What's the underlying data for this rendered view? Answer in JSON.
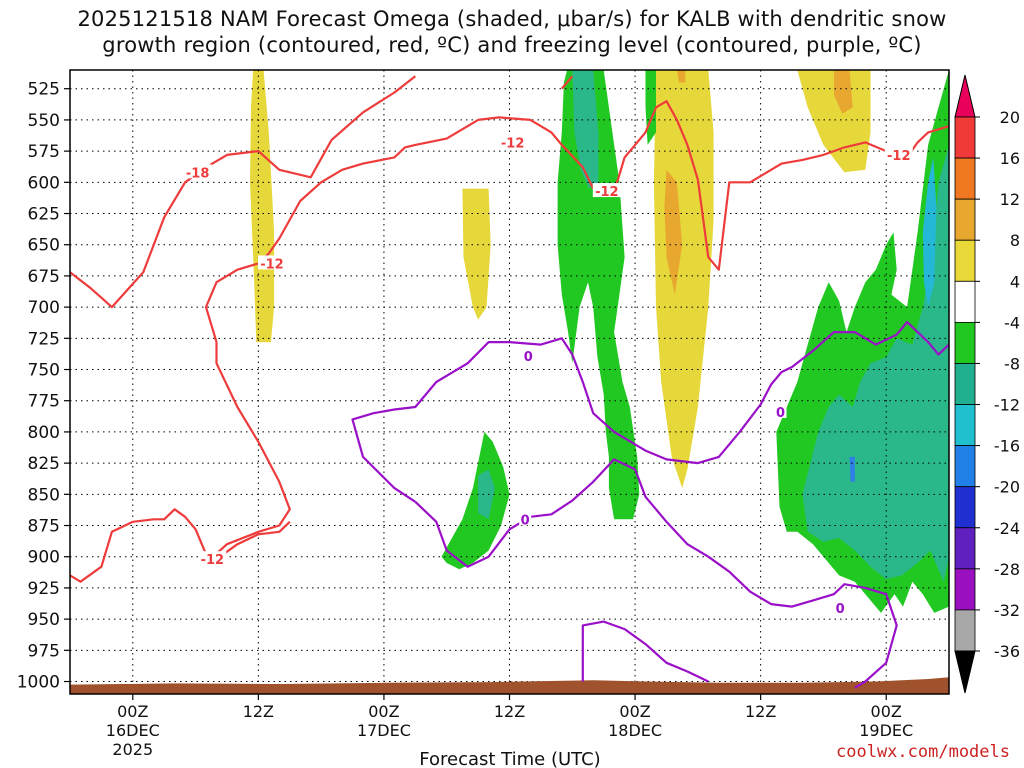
{
  "chart_data": {
    "type": "heatmap",
    "title_line1": "2025121518 NAM Forecast Omega (shaded, μbar/s) for KALB with dendritic snow",
    "title_line2": "growth region (contoured, red, ºC) and freezing level (contoured, purple, ºC)",
    "xlabel": "Forecast Time (UTC)",
    "ylabel": "",
    "credit": "coolwx.com/models",
    "x_ticks": [
      {
        "label": "00Z",
        "day": "16DEC",
        "year": "2025",
        "hour": 6
      },
      {
        "label": "12Z",
        "day": "",
        "year": "",
        "hour": 18
      },
      {
        "label": "00Z",
        "day": "17DEC",
        "year": "",
        "hour": 30
      },
      {
        "label": "12Z",
        "day": "",
        "year": "",
        "hour": 42
      },
      {
        "label": "00Z",
        "day": "18DEC",
        "year": "",
        "hour": 54
      },
      {
        "label": "12Z",
        "day": "",
        "year": "",
        "hour": 66
      },
      {
        "label": "00Z",
        "day": "19DEC",
        "year": "",
        "hour": 78
      }
    ],
    "xlim_hours": [
      0,
      84
    ],
    "y_ticks": [
      "525",
      "550",
      "575",
      "600",
      "625",
      "650",
      "675",
      "700",
      "725",
      "750",
      "775",
      "800",
      "825",
      "850",
      "875",
      "900",
      "925",
      "950",
      "975",
      "1000"
    ],
    "ylim_hpa": [
      510,
      1010
    ],
    "colorbar": {
      "labels": [
        "20",
        "16",
        "12",
        "8",
        "4",
        "-4",
        "-8",
        "-12",
        "-16",
        "-20",
        "-24",
        "-28",
        "-32",
        "-36"
      ],
      "colors": [
        "#e8005a",
        "#f03a3a",
        "#f07820",
        "#e8a830",
        "#e8d838",
        "#ffffff",
        "#22c822",
        "#20b090",
        "#20c0d0",
        "#2080e8",
        "#2030d0",
        "#6020c0",
        "#9a10c0",
        "#a8a8a8",
        "#000000"
      ]
    },
    "fill_colors": {
      "yellow": "#e6d73a",
      "orange": "#e8a830",
      "green": "#22c822",
      "teal": "#2ab88a",
      "cyan": "#24b8d6",
      "blue": "#2f7fe6",
      "ground": "#a0522d"
    },
    "contour_labels": {
      "red_minus18": "-18",
      "red_minus12": "-12",
      "purple_zero": "0"
    },
    "contour_colors": {
      "red": "#ee3b3b",
      "purple": "#9a10c8"
    },
    "red_contours": [
      {
        "level": -18,
        "points": [
          [
            0,
            672
          ],
          [
            2,
            685
          ],
          [
            4,
            700
          ],
          [
            7,
            672
          ],
          [
            9,
            628
          ],
          [
            11,
            600
          ],
          [
            13,
            588
          ],
          [
            15,
            578
          ],
          [
            18,
            575
          ],
          [
            20,
            590
          ],
          [
            23,
            596
          ],
          [
            25,
            566
          ],
          [
            28,
            544
          ],
          [
            31,
            528
          ],
          [
            33,
            515
          ]
        ]
      },
      {
        "level": -12,
        "points": [
          [
            14,
            728
          ],
          [
            14,
            745
          ],
          [
            16,
            780
          ],
          [
            18,
            808
          ],
          [
            20,
            840
          ],
          [
            21,
            862
          ],
          [
            20,
            875
          ],
          [
            18,
            880
          ],
          [
            15,
            890
          ],
          [
            13,
            905
          ]
        ]
      },
      {
        "level": -12,
        "points": [
          [
            0,
            915
          ],
          [
            1,
            920
          ],
          [
            3,
            908
          ],
          [
            4,
            880
          ],
          [
            6,
            872
          ],
          [
            8,
            870
          ],
          [
            9,
            870
          ],
          [
            10,
            862
          ],
          [
            11,
            868
          ],
          [
            12,
            878
          ],
          [
            13,
            898
          ],
          [
            14,
            902
          ],
          [
            16,
            890
          ],
          [
            18,
            882
          ],
          [
            20,
            880
          ],
          [
            21,
            872
          ]
        ]
      },
      {
        "level": -12,
        "points": [
          [
            14,
            728
          ],
          [
            13,
            700
          ],
          [
            14,
            680
          ],
          [
            16,
            670
          ],
          [
            18,
            665
          ],
          [
            19,
            657
          ],
          [
            20,
            645
          ],
          [
            22,
            615
          ],
          [
            24,
            600
          ],
          [
            26,
            590
          ],
          [
            28,
            585
          ],
          [
            31,
            580
          ],
          [
            32,
            572
          ],
          [
            33,
            570
          ],
          [
            36,
            565
          ],
          [
            39,
            550
          ],
          [
            41,
            548
          ],
          [
            44,
            550
          ],
          [
            46,
            560
          ],
          [
            47,
            570
          ],
          [
            49,
            588
          ],
          [
            50,
            605
          ],
          [
            51,
            610
          ],
          [
            52,
            608
          ],
          [
            53,
            580
          ],
          [
            54,
            570
          ],
          [
            55,
            560
          ],
          [
            56,
            540
          ],
          [
            57,
            535
          ],
          [
            58,
            550
          ],
          [
            59,
            570
          ],
          [
            60,
            598
          ],
          [
            61,
            660
          ],
          [
            62,
            670
          ],
          [
            63,
            600
          ],
          [
            65,
            600
          ],
          [
            67,
            590
          ],
          [
            68,
            585
          ],
          [
            70,
            582
          ],
          [
            72,
            578
          ],
          [
            74,
            572
          ],
          [
            76,
            568
          ],
          [
            78,
            575
          ],
          [
            80,
            580
          ],
          [
            81,
            568
          ],
          [
            82,
            560
          ],
          [
            84,
            555
          ]
        ]
      },
      {
        "level": -12,
        "points": [
          [
            47,
            525
          ],
          [
            48,
            515
          ]
        ]
      }
    ],
    "purple_contours": [
      {
        "level": 0,
        "points": [
          [
            33,
            856
          ],
          [
            31,
            845
          ],
          [
            28,
            820
          ],
          [
            27,
            790
          ],
          [
            29,
            785
          ],
          [
            31,
            782
          ],
          [
            33,
            780
          ],
          [
            35,
            760
          ],
          [
            38,
            745
          ],
          [
            40,
            728
          ],
          [
            42,
            728
          ],
          [
            45,
            730
          ],
          [
            47,
            725
          ],
          [
            48,
            738
          ],
          [
            49,
            760
          ],
          [
            50,
            785
          ],
          [
            52,
            800
          ],
          [
            55,
            815
          ],
          [
            57,
            822
          ],
          [
            60,
            825
          ],
          [
            62,
            820
          ],
          [
            64,
            800
          ],
          [
            66,
            778
          ],
          [
            67,
            762
          ],
          [
            68,
            752
          ],
          [
            69,
            748
          ],
          [
            71,
            735
          ],
          [
            73,
            720
          ],
          [
            75,
            720
          ],
          [
            77,
            730
          ],
          [
            79,
            722
          ],
          [
            80,
            712
          ],
          [
            81,
            720
          ],
          [
            82,
            728
          ],
          [
            83,
            738
          ],
          [
            84,
            730
          ]
        ]
      },
      {
        "level": 0,
        "points": [
          [
            33,
            856
          ],
          [
            35,
            872
          ],
          [
            36,
            895
          ],
          [
            38,
            908
          ],
          [
            40,
            900
          ],
          [
            42,
            878
          ],
          [
            44,
            868
          ],
          [
            46,
            866
          ],
          [
            48,
            855
          ],
          [
            50,
            840
          ],
          [
            52,
            822
          ],
          [
            54,
            830
          ],
          [
            55,
            852
          ],
          [
            57,
            872
          ],
          [
            59,
            890
          ],
          [
            61,
            900
          ],
          [
            63,
            912
          ],
          [
            65,
            928
          ],
          [
            67,
            938
          ],
          [
            69,
            940
          ],
          [
            71,
            935
          ],
          [
            73,
            930
          ],
          [
            74,
            922
          ],
          [
            76,
            925
          ],
          [
            78,
            930
          ],
          [
            79,
            955
          ],
          [
            78,
            985
          ],
          [
            76,
            1000
          ],
          [
            75,
            1005
          ]
        ]
      },
      {
        "level": 0,
        "points": [
          [
            49,
            1000
          ],
          [
            49,
            980
          ],
          [
            49,
            955
          ],
          [
            51,
            952
          ],
          [
            53,
            958
          ],
          [
            55,
            970
          ],
          [
            57,
            985
          ],
          [
            59,
            992
          ],
          [
            61,
            1000
          ]
        ]
      }
    ]
  }
}
